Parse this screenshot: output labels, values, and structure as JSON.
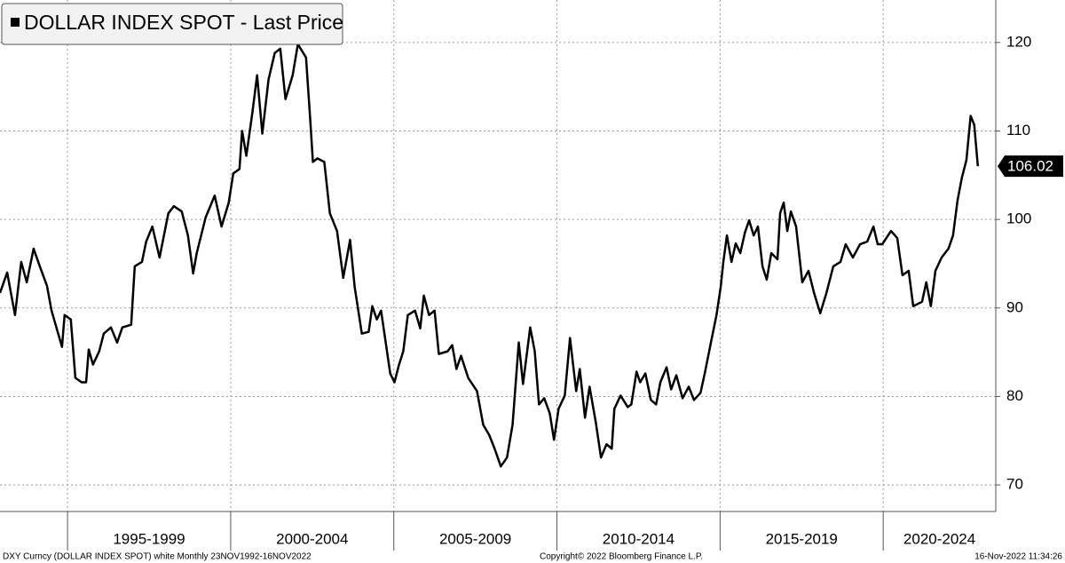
{
  "chart_data": {
    "type": "line",
    "legend": "DOLLAR INDEX SPOT - Last Price",
    "series": [
      {
        "name": "DOLLAR INDEX SPOT - Last Price",
        "color": "#000000",
        "x": [
          1992.93,
          1993.15,
          1993.39,
          1993.58,
          1993.75,
          1993.96,
          1994.15,
          1994.37,
          1994.51,
          1994.83,
          1994.91,
          1995.1,
          1995.24,
          1995.43,
          1995.57,
          1995.65,
          1995.78,
          1995.97,
          1996.11,
          1996.33,
          1996.52,
          1996.68,
          1996.95,
          1997.06,
          1997.28,
          1997.41,
          1997.6,
          1997.82,
          1998.09,
          1998.26,
          1998.5,
          1998.69,
          1998.85,
          1998.96,
          1999.23,
          1999.51,
          1999.72,
          1999.94,
          2000.08,
          2000.27,
          2000.35,
          2000.48,
          2000.67,
          2000.81,
          2000.97,
          2001.16,
          2001.35,
          2001.52,
          2001.68,
          2001.9,
          2002.06,
          2002.31,
          2002.44,
          2002.52,
          2002.66,
          2002.87,
          2003.04,
          2003.26,
          2003.45,
          2003.66,
          2003.8,
          2004.02,
          2004.23,
          2004.34,
          2004.48,
          2004.61,
          2004.89,
          2005.02,
          2005.16,
          2005.29,
          2005.43,
          2005.65,
          2005.81,
          2005.92,
          2006.08,
          2006.25,
          2006.38,
          2006.65,
          2006.79,
          2006.92,
          2007.06,
          2007.28,
          2007.55,
          2007.74,
          2007.93,
          2008.09,
          2008.28,
          2008.47,
          2008.64,
          2008.83,
          2008.96,
          2009.18,
          2009.32,
          2009.45,
          2009.61,
          2009.78,
          2009.91,
          2010.05,
          2010.24,
          2010.4,
          2010.59,
          2010.7,
          2010.86,
          2011.0,
          2011.19,
          2011.35,
          2011.52,
          2011.68,
          2011.76,
          2011.95,
          2012.17,
          2012.28,
          2012.44,
          2012.55,
          2012.71,
          2012.88,
          2013.04,
          2013.17,
          2013.36,
          2013.5,
          2013.66,
          2013.85,
          2014.04,
          2014.2,
          2014.4,
          2014.53,
          2014.72,
          2014.89,
          2015.02,
          2015.1,
          2015.21,
          2015.35,
          2015.48,
          2015.62,
          2015.76,
          2015.89,
          2016.03,
          2016.16,
          2016.3,
          2016.43,
          2016.57,
          2016.76,
          2016.84,
          2016.95,
          2017.06,
          2017.17,
          2017.33,
          2017.52,
          2017.71,
          2017.88,
          2018.07,
          2018.26,
          2018.47,
          2018.69,
          2018.85,
          2019.07,
          2019.29,
          2019.51,
          2019.7,
          2019.83,
          2019.97,
          2020.24,
          2020.43,
          2020.59,
          2020.78,
          2020.92,
          2021.19,
          2021.32,
          2021.46,
          2021.6,
          2021.79,
          2022.0,
          2022.14,
          2022.28,
          2022.41,
          2022.55,
          2022.68,
          2022.79,
          2022.9
        ],
        "values": [
          91.7,
          94,
          89.2,
          95.2,
          92.9,
          96.7,
          94.7,
          92.5,
          89.7,
          85.6,
          89.2,
          88.7,
          82.1,
          81.6,
          81.6,
          85.3,
          83.6,
          85.1,
          87.1,
          87.8,
          86.1,
          87.8,
          88.1,
          94.7,
          95.2,
          97.5,
          99.2,
          95.7,
          100.7,
          101.5,
          100.9,
          98.2,
          93.9,
          96.2,
          100.2,
          102.7,
          99.2,
          101.9,
          105.2,
          105.7,
          110,
          107.2,
          112.2,
          116.3,
          109.7,
          115.8,
          118.8,
          119.3,
          113.6,
          116.3,
          119.8,
          118.3,
          111.2,
          106.5,
          106.9,
          106.5,
          100.7,
          98.7,
          93.4,
          97.7,
          92.4,
          87.1,
          87.3,
          90.2,
          88.7,
          89.7,
          82.6,
          81.6,
          83.6,
          85.1,
          89.2,
          89.7,
          87.7,
          91.4,
          89.2,
          89.7,
          84.8,
          85.1,
          85.8,
          83.1,
          84.6,
          82.1,
          80.6,
          76.8,
          75.6,
          74.1,
          72.1,
          73.1,
          76.8,
          86.1,
          81.4,
          87.8,
          85.1,
          79.1,
          79.8,
          78.1,
          75.1,
          78.6,
          80.1,
          86.6,
          80.6,
          83.1,
          77.6,
          81.1,
          77.1,
          73.1,
          74.6,
          74.1,
          78.6,
          80.1,
          78.8,
          79.1,
          82.8,
          81.6,
          82.6,
          79.6,
          79.1,
          81.6,
          83.3,
          80.8,
          82.4,
          79.8,
          81.1,
          79.6,
          80.4,
          82.6,
          86.1,
          89.2,
          92.4,
          95.2,
          98.2,
          95.2,
          97.3,
          96.2,
          98.5,
          99.9,
          98.2,
          99.2,
          94.7,
          93.2,
          96.2,
          95.5,
          100.7,
          101.9,
          98.7,
          100.9,
          99.2,
          92.9,
          94.2,
          91.7,
          89.4,
          91.7,
          94.7,
          95.2,
          97.2,
          95.7,
          97.2,
          97.5,
          99.2,
          97.2,
          97.2,
          98.7,
          97.9,
          93.7,
          94.2,
          90.2,
          90.7,
          92.9,
          90.2,
          94.2,
          95.7,
          96.7,
          98.2,
          102.2,
          104.7,
          106.7,
          111.7,
          110.7,
          106.02
        ]
      }
    ],
    "xlim": [
      1992.93,
      2023.45
    ],
    "xticks": [
      1995,
      2000,
      2005,
      2010,
      2015,
      2020
    ],
    "period_labels": [
      "1995-1999",
      "2000-2004",
      "2005-2009",
      "2010-2014",
      "2015-2019",
      "2020-2024"
    ],
    "ylim": [
      67,
      124.8
    ],
    "yticks": [
      70,
      80,
      90,
      100,
      110,
      120
    ],
    "grid": true,
    "footer": {
      "left": "DXY Curncy (DOLLAR INDEX SPOT) white  Monthly 23NOV1992-16NOV2022",
      "center": "Copyright© 2022 Bloomberg Finance L.P.",
      "right": "16-Nov-2022 11:34:26"
    }
  }
}
